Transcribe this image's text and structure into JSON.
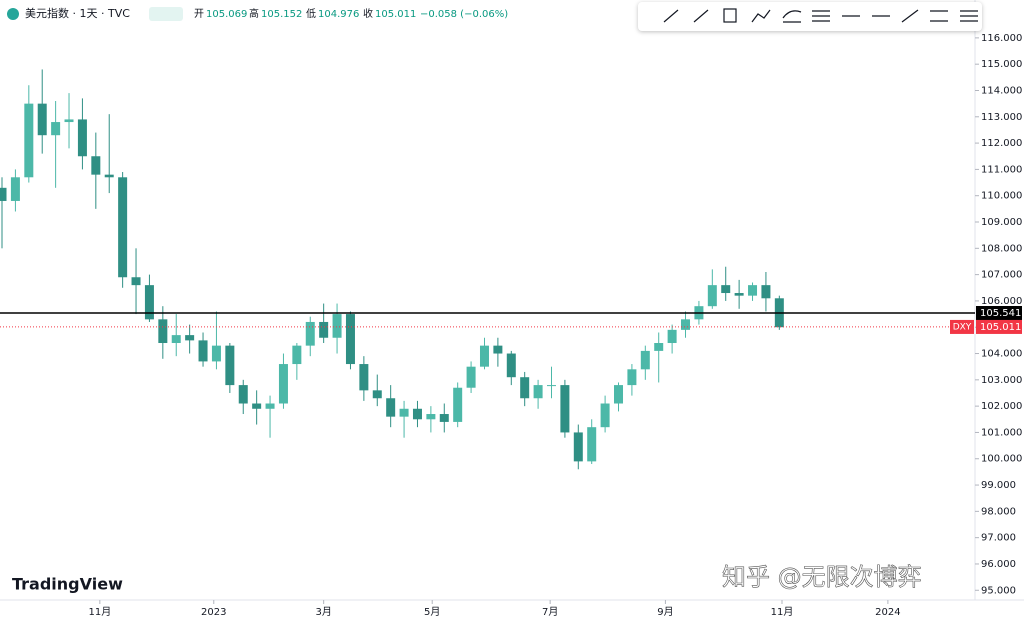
{
  "chart_data": {
    "type": "candlestick",
    "header": {
      "symbol": "美元指数 · 1天 · TVC",
      "open_label": "开",
      "open": "105.069",
      "high_label": "高",
      "high": "105.152",
      "low_label": "低",
      "low": "104.976",
      "close_label": "收",
      "close": "105.011",
      "change": "−0.058 (−0.06%)"
    },
    "x": [
      0,
      1,
      2,
      3,
      4,
      5,
      6,
      7,
      8,
      9,
      10,
      11,
      12,
      13,
      14,
      15,
      16,
      17,
      18,
      19,
      20,
      21,
      22,
      23,
      24,
      25,
      26,
      27,
      28,
      29,
      30,
      31,
      32,
      33,
      34,
      35,
      36,
      37,
      38,
      39,
      40,
      41,
      42,
      43,
      44,
      45,
      46,
      47,
      48,
      49,
      50,
      51,
      52,
      53,
      54,
      55,
      56,
      57,
      58
    ],
    "open": [
      110.3,
      109.8,
      110.7,
      113.5,
      112.3,
      112.8,
      112.9,
      111.5,
      110.8,
      110.7,
      106.9,
      106.6,
      105.3,
      104.4,
      104.7,
      104.5,
      103.7,
      104.3,
      102.8,
      102.1,
      101.9,
      102.1,
      103.6,
      104.3,
      105.2,
      104.6,
      105.5,
      103.6,
      102.6,
      102.3,
      101.6,
      101.9,
      101.5,
      101.7,
      101.4,
      102.7,
      103.5,
      104.3,
      104.0,
      103.1,
      102.3,
      102.8,
      102.8,
      101.0,
      99.9,
      101.2,
      102.1,
      102.8,
      103.4,
      104.1,
      104.4,
      104.9,
      105.3,
      105.8,
      106.6,
      106.3,
      106.2,
      106.6,
      106.1
    ],
    "high": [
      110.7,
      111.0,
      114.2,
      114.8,
      113.6,
      113.9,
      113.7,
      112.4,
      113.1,
      110.9,
      108.0,
      107.0,
      105.8,
      105.5,
      105.1,
      104.8,
      105.6,
      104.4,
      103.0,
      102.6,
      102.4,
      104.0,
      104.4,
      105.4,
      105.9,
      105.9,
      105.6,
      103.9,
      103.2,
      102.8,
      102.2,
      102.2,
      102.0,
      102.1,
      102.9,
      103.7,
      104.6,
      104.6,
      104.1,
      103.3,
      103.0,
      103.5,
      103.0,
      101.3,
      101.5,
      102.4,
      102.9,
      103.6,
      104.3,
      104.8,
      105.1,
      105.6,
      106.0,
      107.2,
      107.3,
      106.8,
      106.7,
      107.1,
      106.2
    ],
    "low": [
      108.0,
      109.4,
      110.5,
      111.6,
      110.3,
      111.8,
      111.0,
      109.5,
      110.1,
      106.5,
      105.5,
      105.2,
      103.8,
      103.9,
      104.0,
      103.5,
      103.4,
      102.5,
      101.7,
      101.3,
      100.8,
      101.9,
      103.0,
      103.9,
      104.4,
      104.0,
      103.4,
      102.2,
      102.0,
      101.2,
      100.8,
      101.2,
      101.0,
      101.0,
      101.2,
      102.5,
      103.4,
      103.5,
      102.8,
      102.0,
      101.9,
      102.3,
      100.8,
      99.6,
      99.8,
      101.0,
      101.8,
      102.4,
      103.0,
      102.9,
      104.0,
      104.6,
      105.1,
      105.7,
      106.0,
      105.7,
      106.0,
      105.6,
      104.9
    ],
    "close": [
      109.8,
      110.7,
      113.5,
      112.3,
      112.8,
      112.9,
      111.5,
      110.8,
      110.7,
      106.9,
      106.6,
      105.3,
      104.4,
      104.7,
      104.5,
      103.7,
      104.3,
      102.8,
      102.1,
      101.9,
      102.1,
      103.6,
      104.3,
      105.2,
      104.6,
      105.5,
      103.6,
      102.6,
      102.3,
      101.6,
      101.9,
      101.5,
      101.7,
      101.4,
      102.7,
      103.5,
      104.3,
      104.0,
      103.1,
      102.3,
      102.8,
      102.8,
      101.0,
      99.9,
      101.2,
      102.1,
      102.8,
      103.4,
      104.1,
      104.4,
      104.9,
      105.3,
      105.8,
      106.6,
      106.3,
      106.2,
      106.6,
      106.1,
      105.0
    ],
    "up_color": "#4cb8a8",
    "down_color": "#2f8f84",
    "hline": 105.541,
    "hline_color": "#000000",
    "last": 105.011,
    "last_label": "DXY",
    "last_color": "#f23645",
    "xlim": [
      -0.15,
      72.6
    ],
    "ylim": [
      94.63,
      117.44
    ],
    "xticks": [
      {
        "value": 7.3,
        "label": "11月"
      },
      {
        "value": 15.8,
        "label": "2023"
      },
      {
        "value": 24,
        "label": "3月"
      },
      {
        "value": 32.1,
        "label": "5月"
      },
      {
        "value": 40.9,
        "label": "7月"
      },
      {
        "value": 49.5,
        "label": "9月"
      },
      {
        "value": 58.2,
        "label": "11月"
      },
      {
        "value": 66.1,
        "label": "2024"
      }
    ],
    "yticks": [
      {
        "value": 95,
        "label": "95.000"
      },
      {
        "value": 96,
        "label": "96.000"
      },
      {
        "value": 97,
        "label": "97.000"
      },
      {
        "value": 98,
        "label": "98.000"
      },
      {
        "value": 99,
        "label": "99.000"
      },
      {
        "value": 100,
        "label": "100.000"
      },
      {
        "value": 101,
        "label": "101.000"
      },
      {
        "value": 102,
        "label": "102.000"
      },
      {
        "value": 103,
        "label": "103.000"
      },
      {
        "value": 104,
        "label": "104.000"
      },
      {
        "value": 105,
        "label": "105.000"
      },
      {
        "value": 106,
        "label": "106.000"
      },
      {
        "value": 107,
        "label": "107.000"
      },
      {
        "value": 108,
        "label": "108.000"
      },
      {
        "value": 109,
        "label": "109.000"
      },
      {
        "value": 110,
        "label": "110.000"
      },
      {
        "value": 111,
        "label": "111.000"
      },
      {
        "value": 112,
        "label": "112.000"
      },
      {
        "value": 113,
        "label": "113.000"
      },
      {
        "value": 114,
        "label": "114.000"
      },
      {
        "value": 115,
        "label": "115.000"
      },
      {
        "value": 116,
        "label": "116.000"
      }
    ],
    "logo": "TradingView",
    "watermark": "知乎 @无限次博弈"
  }
}
